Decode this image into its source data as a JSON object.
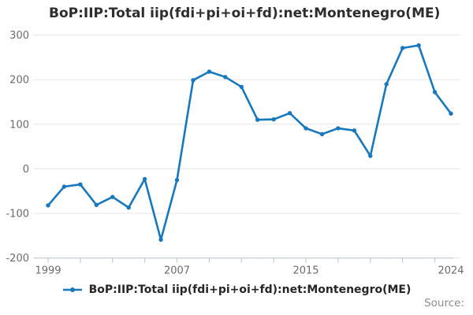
{
  "header": {
    "title": "BoP:IIP:Total iip(fdi+pi+oi+fd):net:Montenegro(ME)"
  },
  "legend": {
    "label": "BoP:IIP:Total iip(fdi+pi+oi+fd):net:Montenegro(ME)"
  },
  "footer": {
    "source_label": "Source:"
  },
  "colors": {
    "line": "#1878be",
    "grid": "#e6e6e6",
    "axis": "#c4cbda",
    "tick_label": "#6b6b6b",
    "title_text": "#2d2d2d",
    "legend_text": "#262626",
    "source_text": "#8c8c8c"
  },
  "chart_data": {
    "type": "line",
    "title": "BoP:IIP:Total iip(fdi+pi+oi+fd):net:Montenegro(ME)",
    "x": [
      1999,
      2000,
      2001,
      2002,
      2003,
      2004,
      2005,
      2006,
      2007,
      2008,
      2009,
      2010,
      2011,
      2012,
      2013,
      2014,
      2015,
      2016,
      2017,
      2018,
      2019,
      2020,
      2021,
      2022,
      2023,
      2024
    ],
    "series": [
      {
        "name": "BoP:IIP:Total iip(fdi+pi+oi+fd):net:Montenegro(ME)",
        "values": [
          -82,
          -40,
          -35,
          -81,
          -63,
          -87,
          -23,
          -159,
          -25,
          199,
          218,
          206,
          184,
          110,
          111,
          125,
          91,
          78,
          91,
          86,
          29,
          190,
          271,
          277,
          172,
          124
        ]
      }
    ],
    "xlabel": "",
    "ylabel": "",
    "ylim": [
      -200,
      300
    ],
    "yticks": [
      300,
      200,
      100,
      0,
      -100,
      -200
    ],
    "xticks_minor_every": 2,
    "xtick_labels": [
      "1999",
      "2007",
      "2015",
      "2024"
    ],
    "xtick_label_years": [
      1999,
      2007,
      2015,
      2024
    ],
    "grid": true,
    "legend_position": "bottom",
    "marker": "circle"
  }
}
